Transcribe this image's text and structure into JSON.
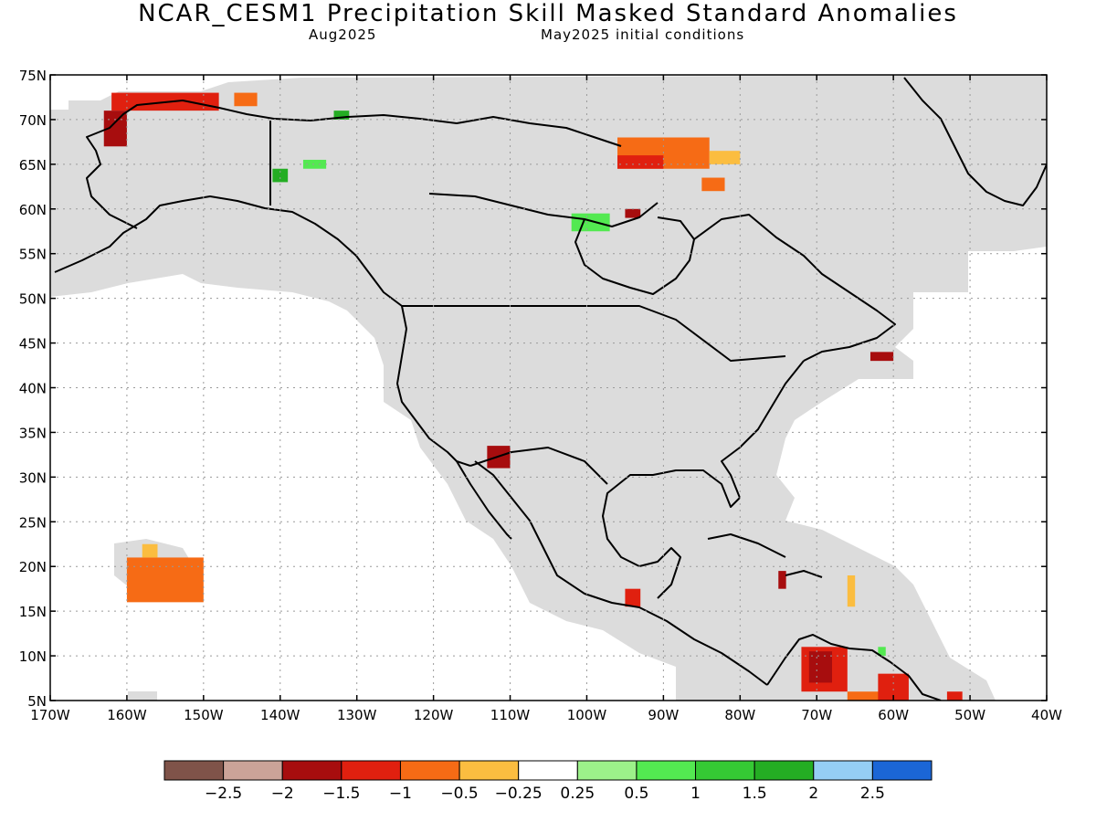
{
  "header": {
    "title": "NCAR_CESM1 Precipitation Skill Masked Standard Anomalies",
    "target": "Aug2025",
    "init": "May2025 initial conditions"
  },
  "map": {
    "lat_range": [
      5,
      75
    ],
    "lon_range": [
      -170,
      -40
    ],
    "lat_labels": [
      "75N",
      "70N",
      "65N",
      "60N",
      "55N",
      "50N",
      "45N",
      "40N",
      "35N",
      "30N",
      "25N",
      "20N",
      "15N",
      "10N",
      "5N"
    ],
    "lon_labels": [
      "170W",
      "160W",
      "150W",
      "140W",
      "130W",
      "120W",
      "110W",
      "100W",
      "90W",
      "80W",
      "70W",
      "60W",
      "50W",
      "40W"
    ],
    "mask_color": "#dcdcdc",
    "grid": true,
    "anomaly_regions": [
      {
        "name": "north-alaska",
        "value": -1.5,
        "lon": [
          -162,
          -148
        ],
        "lat": [
          71,
          73
        ]
      },
      {
        "name": "nw-alaska",
        "value": -2.0,
        "lon": [
          -163,
          -160
        ],
        "lat": [
          67,
          71
        ]
      },
      {
        "name": "beaufort",
        "value": -1.0,
        "lon": [
          -146,
          -143
        ],
        "lat": [
          71.5,
          73
        ]
      },
      {
        "name": "yukon-green",
        "value": 1.5,
        "lon": [
          -141,
          -139
        ],
        "lat": [
          63,
          64.5
        ]
      },
      {
        "name": "yukon-lightgreen",
        "value": 0.5,
        "lon": [
          -137,
          -134
        ],
        "lat": [
          64.5,
          65.5
        ]
      },
      {
        "name": "mackenzie-green",
        "value": 1.5,
        "lon": [
          -133,
          -131
        ],
        "lat": [
          70,
          71
        ]
      },
      {
        "name": "baffin-orange",
        "value": -1.0,
        "lon": [
          -96,
          -84
        ],
        "lat": [
          64.5,
          68
        ]
      },
      {
        "name": "baffin-red",
        "value": -1.5,
        "lon": [
          -96,
          -90
        ],
        "lat": [
          64.5,
          66
        ]
      },
      {
        "name": "baffin-gold",
        "value": -0.5,
        "lon": [
          -84,
          -80
        ],
        "lat": [
          65,
          66.5
        ]
      },
      {
        "name": "quebec-orange",
        "value": -1.0,
        "lon": [
          -85,
          -82
        ],
        "lat": [
          62,
          63.5
        ]
      },
      {
        "name": "hudson-green",
        "value": 0.5,
        "lon": [
          -102,
          -97
        ],
        "lat": [
          57.5,
          59.5
        ]
      },
      {
        "name": "hudson-red",
        "value": -2.0,
        "lon": [
          -95,
          -93
        ],
        "lat": [
          59,
          60
        ]
      },
      {
        "name": "arizona",
        "value": -2.0,
        "lon": [
          -113,
          -110
        ],
        "lat": [
          31,
          33.5
        ]
      },
      {
        "name": "newfoundland",
        "value": -2.0,
        "lon": [
          -63,
          -60
        ],
        "lat": [
          43,
          44
        ]
      },
      {
        "name": "hawaii-orange",
        "value": -1.0,
        "lon": [
          -160,
          -150
        ],
        "lat": [
          16,
          21
        ]
      },
      {
        "name": "hawaii-gold",
        "value": -0.5,
        "lon": [
          -158,
          -156
        ],
        "lat": [
          21,
          22.5
        ]
      },
      {
        "name": "guatemala",
        "value": -1.5,
        "lon": [
          -95,
          -93
        ],
        "lat": [
          15.5,
          17.5
        ]
      },
      {
        "name": "haiti",
        "value": -2.0,
        "lon": [
          -75,
          -74
        ],
        "lat": [
          17.5,
          19.5
        ]
      },
      {
        "name": "lesser-antilles-gold",
        "value": -0.5,
        "lon": [
          -66,
          -65
        ],
        "lat": [
          15.5,
          19
        ]
      },
      {
        "name": "venezuela-red",
        "value": -1.5,
        "lon": [
          -72,
          -66
        ],
        "lat": [
          6,
          11
        ]
      },
      {
        "name": "venezuela-dark",
        "value": -2.0,
        "lon": [
          -71,
          -68
        ],
        "lat": [
          7,
          10.5
        ]
      },
      {
        "name": "venezuela-orange",
        "value": -1.0,
        "lon": [
          -66,
          -59
        ],
        "lat": [
          5,
          6
        ]
      },
      {
        "name": "guyana-red",
        "value": -1.5,
        "lon": [
          -62,
          -58
        ],
        "lat": [
          5,
          8
        ]
      },
      {
        "name": "suriname-red",
        "value": -1.5,
        "lon": [
          -53,
          -51
        ],
        "lat": [
          5,
          6
        ]
      },
      {
        "name": "trinidad-green",
        "value": 0.5,
        "lon": [
          -62,
          -61
        ],
        "lat": [
          10,
          11
        ]
      }
    ]
  },
  "colorbar": {
    "colors": [
      "#7f5349",
      "#cba398",
      "#a70d0e",
      "#e0200f",
      "#f66b15",
      "#fbbd40",
      "#ffffff",
      "#9cf18a",
      "#53e951",
      "#35c934",
      "#24ad23",
      "#95cef5",
      "#1b66d6"
    ],
    "labels": [
      "−2.5",
      "−2",
      "−1.5",
      "−1",
      "−0.5",
      "−0.25",
      "0.25",
      "0.5",
      "1",
      "1.5",
      "2",
      "2.5"
    ]
  }
}
